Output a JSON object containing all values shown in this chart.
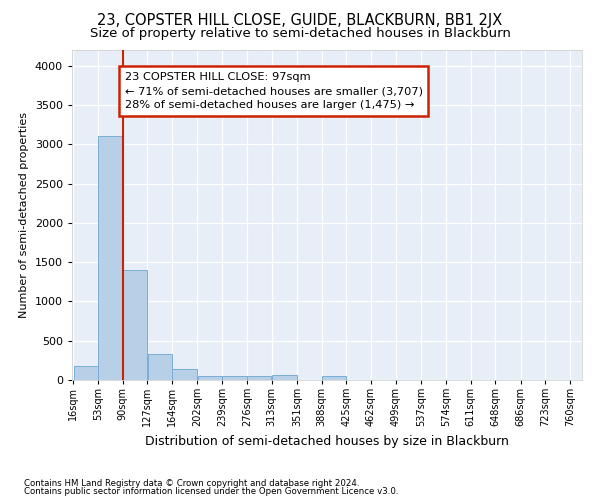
{
  "title": "23, COPSTER HILL CLOSE, GUIDE, BLACKBURN, BB1 2JX",
  "subtitle": "Size of property relative to semi-detached houses in Blackburn",
  "xlabel": "Distribution of semi-detached houses by size in Blackburn",
  "ylabel": "Number of semi-detached properties",
  "footnote1": "Contains HM Land Registry data © Crown copyright and database right 2024.",
  "footnote2": "Contains public sector information licensed under the Open Government Licence v3.0.",
  "annotation_title": "23 COPSTER HILL CLOSE: 97sqm",
  "annotation_line1": "← 71% of semi-detached houses are smaller (3,707)",
  "annotation_line2": "28% of semi-detached houses are larger (1,475) →",
  "bar_centers": [
    34.5,
    71.5,
    108.5,
    145.5,
    183.0,
    220.5,
    257.5,
    294.5,
    332.0,
    369.5,
    406.5,
    443.5,
    480.5,
    518.0,
    555.5,
    592.5,
    629.5,
    667.0,
    704.5,
    741.5
  ],
  "bar_widths": [
    37,
    37,
    37,
    37,
    38,
    37,
    37,
    37,
    38,
    37,
    37,
    37,
    37,
    38,
    37,
    37,
    37,
    38,
    37,
    37
  ],
  "bar_heights": [
    175,
    3100,
    1400,
    330,
    140,
    55,
    50,
    50,
    60,
    0,
    55,
    0,
    0,
    0,
    0,
    0,
    0,
    0,
    0,
    0
  ],
  "bar_color": "#b8cfe8",
  "bar_edgecolor": "#7aaed6",
  "vline_color": "#cc2200",
  "vline_x": 90,
  "annotation_box_color": "#cc2200",
  "ylim": [
    0,
    4200
  ],
  "yticks": [
    0,
    500,
    1000,
    1500,
    2000,
    2500,
    3000,
    3500,
    4000
  ],
  "xlim_min": 16,
  "xlim_max": 760,
  "plot_bg_color": "#e8eef8",
  "title_fontsize": 10.5,
  "subtitle_fontsize": 9.5,
  "xlabel_fontsize": 9,
  "ylabel_fontsize": 8,
  "tick_label_fontsize": 7,
  "tick_labels": [
    "16sqm",
    "53sqm",
    "90sqm",
    "127sqm",
    "164sqm",
    "202sqm",
    "239sqm",
    "276sqm",
    "313sqm",
    "351sqm",
    "388sqm",
    "425sqm",
    "462sqm",
    "499sqm",
    "537sqm",
    "574sqm",
    "611sqm",
    "648sqm",
    "686sqm",
    "723sqm",
    "760sqm"
  ],
  "tick_positions": [
    16,
    53,
    90,
    127,
    164,
    202,
    239,
    276,
    313,
    351,
    388,
    425,
    462,
    499,
    537,
    574,
    611,
    648,
    686,
    723,
    760
  ]
}
